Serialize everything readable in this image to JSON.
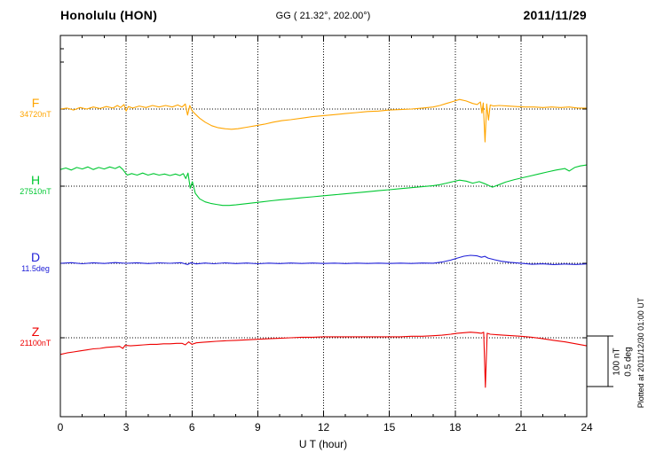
{
  "header": {
    "station": "Honolulu (HON)",
    "coordinates": "GG ( 21.32°, 202.00°)",
    "date": "2011/11/29"
  },
  "right_panel": {
    "scale_labels": [
      "100 nT",
      "0.5 deg"
    ],
    "plotted_at": "Plotted at 2011/12/30 01:00 UT"
  },
  "chart_data": {
    "type": "line",
    "title": "Honolulu (HON) magnetogram",
    "date": "2011/11/29",
    "xlabel": "U T (hour)",
    "x_range": [
      0,
      24
    ],
    "x_ticks": [
      0,
      3,
      6,
      9,
      12,
      15,
      18,
      21,
      24
    ],
    "grid": "dotted vertical gridlines every 3 hours; dotted horizontal baseline for each trace",
    "legend_position": "left margin, one label per trace",
    "scale": {
      "nT_per_div": 100,
      "deg_per_div": 0.5
    },
    "offsets_note": "points are [UT hour, offset from baseline] in the series unit",
    "series": [
      {
        "name": "F",
        "unit": "nT",
        "baseline_label": "34720nT",
        "baseline_value": 34720,
        "color": "#FFA500",
        "points": [
          [
            0,
            0
          ],
          [
            0.3,
            2
          ],
          [
            0.6,
            -2
          ],
          [
            0.9,
            3
          ],
          [
            1.2,
            0
          ],
          [
            1.5,
            4
          ],
          [
            1.8,
            1
          ],
          [
            2.1,
            5
          ],
          [
            2.4,
            2
          ],
          [
            2.6,
            7
          ],
          [
            2.75,
            3
          ],
          [
            2.9,
            9
          ],
          [
            3,
            -4
          ],
          [
            3.1,
            5
          ],
          [
            3.3,
            2
          ],
          [
            3.6,
            6
          ],
          [
            3.9,
            3
          ],
          [
            4.2,
            7
          ],
          [
            4.5,
            4
          ],
          [
            4.8,
            7
          ],
          [
            5.1,
            4
          ],
          [
            5.35,
            8
          ],
          [
            5.55,
            4
          ],
          [
            5.7,
            10
          ],
          [
            5.8,
            -12
          ],
          [
            5.9,
            7
          ],
          [
            6,
            -3
          ],
          [
            6.15,
            -10
          ],
          [
            6.35,
            -18
          ],
          [
            6.6,
            -26
          ],
          [
            6.9,
            -33
          ],
          [
            7.2,
            -37
          ],
          [
            7.5,
            -39
          ],
          [
            7.8,
            -40
          ],
          [
            8.1,
            -39
          ],
          [
            8.5,
            -36
          ],
          [
            8.9,
            -33
          ],
          [
            9.3,
            -30
          ],
          [
            9.7,
            -26
          ],
          [
            10.1,
            -23
          ],
          [
            10.5,
            -21
          ],
          [
            11,
            -18
          ],
          [
            11.5,
            -15
          ],
          [
            12,
            -13
          ],
          [
            12.5,
            -11
          ],
          [
            13,
            -9
          ],
          [
            13.5,
            -7
          ],
          [
            14,
            -5
          ],
          [
            14.5,
            -4
          ],
          [
            15,
            -2
          ],
          [
            15.5,
            -1
          ],
          [
            16,
            0
          ],
          [
            16.5,
            2
          ],
          [
            17,
            4
          ],
          [
            17.3,
            7
          ],
          [
            17.6,
            11
          ],
          [
            17.9,
            15
          ],
          [
            18.2,
            19
          ],
          [
            18.5,
            16
          ],
          [
            18.8,
            11
          ],
          [
            19,
            9
          ],
          [
            19.15,
            14
          ],
          [
            19.22,
            -8
          ],
          [
            19.28,
            12
          ],
          [
            19.36,
            -65
          ],
          [
            19.44,
            10
          ],
          [
            19.52,
            -22
          ],
          [
            19.6,
            8
          ],
          [
            19.75,
            6
          ],
          [
            20,
            7
          ],
          [
            20.4,
            6
          ],
          [
            20.8,
            5
          ],
          [
            21.2,
            4
          ],
          [
            21.6,
            4
          ],
          [
            22,
            3
          ],
          [
            22.4,
            4
          ],
          [
            22.8,
            3
          ],
          [
            23.2,
            4
          ],
          [
            23.6,
            2
          ],
          [
            24,
            2
          ]
        ]
      },
      {
        "name": "H",
        "unit": "nT",
        "baseline_label": "27510nT",
        "baseline_value": 27510,
        "color": "#00C832",
        "points": [
          [
            0,
            33
          ],
          [
            0.25,
            36
          ],
          [
            0.5,
            32
          ],
          [
            0.75,
            37
          ],
          [
            1,
            34
          ],
          [
            1.25,
            38
          ],
          [
            1.5,
            33
          ],
          [
            1.75,
            37
          ],
          [
            2,
            34
          ],
          [
            2.25,
            38
          ],
          [
            2.5,
            35
          ],
          [
            2.7,
            39
          ],
          [
            2.85,
            33
          ],
          [
            2.95,
            27
          ],
          [
            3.05,
            22
          ],
          [
            3.25,
            25
          ],
          [
            3.5,
            22
          ],
          [
            3.75,
            26
          ],
          [
            4,
            22
          ],
          [
            4.25,
            25
          ],
          [
            4.5,
            22
          ],
          [
            4.75,
            24
          ],
          [
            5,
            21
          ],
          [
            5.25,
            24
          ],
          [
            5.45,
            21
          ],
          [
            5.6,
            25
          ],
          [
            5.72,
            15
          ],
          [
            5.82,
            26
          ],
          [
            5.92,
            -4
          ],
          [
            6.02,
            9
          ],
          [
            6.15,
            -14
          ],
          [
            6.35,
            -25
          ],
          [
            6.6,
            -31
          ],
          [
            6.85,
            -34
          ],
          [
            7.1,
            -36
          ],
          [
            7.4,
            -38
          ],
          [
            7.7,
            -38
          ],
          [
            8,
            -37
          ],
          [
            8.4,
            -35
          ],
          [
            8.8,
            -33
          ],
          [
            9.2,
            -31
          ],
          [
            9.6,
            -29
          ],
          [
            10,
            -27
          ],
          [
            10.5,
            -25
          ],
          [
            11,
            -23
          ],
          [
            11.5,
            -21
          ],
          [
            12,
            -19
          ],
          [
            12.5,
            -17
          ],
          [
            13,
            -15
          ],
          [
            13.5,
            -13
          ],
          [
            14,
            -11
          ],
          [
            14.5,
            -9
          ],
          [
            15,
            -7
          ],
          [
            15.5,
            -5
          ],
          [
            16,
            -3
          ],
          [
            16.5,
            -1
          ],
          [
            17,
            1
          ],
          [
            17.3,
            3
          ],
          [
            17.6,
            6
          ],
          [
            17.9,
            9
          ],
          [
            18.2,
            12
          ],
          [
            18.5,
            10
          ],
          [
            18.8,
            6
          ],
          [
            19.1,
            9
          ],
          [
            19.4,
            4
          ],
          [
            19.7,
            -2
          ],
          [
            20,
            3
          ],
          [
            20.3,
            8
          ],
          [
            20.7,
            13
          ],
          [
            21,
            16
          ],
          [
            21.4,
            20
          ],
          [
            21.8,
            24
          ],
          [
            22.2,
            28
          ],
          [
            22.6,
            32
          ],
          [
            23,
            35
          ],
          [
            23.2,
            30
          ],
          [
            23.45,
            37
          ],
          [
            23.7,
            40
          ],
          [
            24,
            42
          ]
        ]
      },
      {
        "name": "D",
        "unit": "deg",
        "baseline_label": "11.5deg",
        "baseline_value": 11.5,
        "color": "#2020D8",
        "points": [
          [
            0,
            0
          ],
          [
            0.5,
            0.006
          ],
          [
            1,
            -0.004
          ],
          [
            1.5,
            0.005
          ],
          [
            2,
            -0.002
          ],
          [
            2.5,
            0.007
          ],
          [
            3,
            0
          ],
          [
            3.5,
            0.005
          ],
          [
            4,
            -0.003
          ],
          [
            4.5,
            0.004
          ],
          [
            5,
            0
          ],
          [
            5.5,
            0.006
          ],
          [
            5.8,
            -0.012
          ],
          [
            5.95,
            0.005
          ],
          [
            6.2,
            -0.006
          ],
          [
            6.6,
            0.003
          ],
          [
            7,
            -0.004
          ],
          [
            7.5,
            0.004
          ],
          [
            8,
            -0.003
          ],
          [
            8.5,
            0.003
          ],
          [
            9,
            -0.004
          ],
          [
            9.5,
            0.002
          ],
          [
            10,
            -0.003
          ],
          [
            10.5,
            0.003
          ],
          [
            11,
            -0.002
          ],
          [
            11.5,
            0.003
          ],
          [
            12,
            -0.002
          ],
          [
            12.5,
            0.002
          ],
          [
            13,
            -0.003
          ],
          [
            13.5,
            0.002
          ],
          [
            14,
            -0.002
          ],
          [
            14.5,
            0.002
          ],
          [
            15,
            -0.002
          ],
          [
            15.5,
            0.002
          ],
          [
            16,
            -0.002
          ],
          [
            16.5,
            0.003
          ],
          [
            17,
            0.001
          ],
          [
            17.4,
            0.012
          ],
          [
            17.8,
            0.032
          ],
          [
            18.1,
            0.052
          ],
          [
            18.4,
            0.07
          ],
          [
            18.7,
            0.079
          ],
          [
            19,
            0.074
          ],
          [
            19.2,
            0.06
          ],
          [
            19.35,
            0.069
          ],
          [
            19.5,
            0.052
          ],
          [
            19.8,
            0.035
          ],
          [
            20.1,
            0.02
          ],
          [
            20.5,
            0.01
          ],
          [
            21,
            0.001
          ],
          [
            21.5,
            -0.01
          ],
          [
            22,
            -0.005
          ],
          [
            22.5,
            -0.012
          ],
          [
            23,
            -0.007
          ],
          [
            23.5,
            -0.011
          ],
          [
            24,
            -0.006
          ]
        ]
      },
      {
        "name": "Z",
        "unit": "nT",
        "baseline_label": "21100nT",
        "baseline_value": 21100,
        "color": "#EE0000",
        "points": [
          [
            0,
            -33
          ],
          [
            0.3,
            -30
          ],
          [
            0.6,
            -28
          ],
          [
            0.9,
            -26
          ],
          [
            1.2,
            -24
          ],
          [
            1.5,
            -22
          ],
          [
            1.8,
            -21
          ],
          [
            2.1,
            -19
          ],
          [
            2.4,
            -18
          ],
          [
            2.7,
            -17
          ],
          [
            2.85,
            -21
          ],
          [
            2.95,
            -15
          ],
          [
            3.2,
            -16
          ],
          [
            3.5,
            -15
          ],
          [
            3.8,
            -14
          ],
          [
            4.1,
            -13
          ],
          [
            4.4,
            -13
          ],
          [
            4.7,
            -12
          ],
          [
            5,
            -12
          ],
          [
            5.3,
            -11
          ],
          [
            5.55,
            -11
          ],
          [
            5.7,
            -14
          ],
          [
            5.85,
            -8
          ],
          [
            6,
            -13
          ],
          [
            6.2,
            -10
          ],
          [
            6.5,
            -9
          ],
          [
            6.8,
            -8
          ],
          [
            7.1,
            -7
          ],
          [
            7.5,
            -6
          ],
          [
            8,
            -5
          ],
          [
            8.5,
            -4
          ],
          [
            9,
            -3
          ],
          [
            9.5,
            -2
          ],
          [
            10,
            -1
          ],
          [
            10.5,
            0
          ],
          [
            11,
            1
          ],
          [
            11.5,
            1
          ],
          [
            12,
            2
          ],
          [
            12.5,
            2
          ],
          [
            13,
            2
          ],
          [
            13.5,
            2
          ],
          [
            14,
            2
          ],
          [
            14.5,
            2
          ],
          [
            15,
            2
          ],
          [
            15.5,
            2
          ],
          [
            16,
            3
          ],
          [
            16.5,
            3
          ],
          [
            17,
            4
          ],
          [
            17.4,
            5
          ],
          [
            17.8,
            7
          ],
          [
            18.1,
            9
          ],
          [
            18.4,
            10
          ],
          [
            18.7,
            11
          ],
          [
            19,
            10
          ],
          [
            19.2,
            9
          ],
          [
            19.3,
            11
          ],
          [
            19.38,
            -98
          ],
          [
            19.46,
            9
          ],
          [
            19.6,
            7
          ],
          [
            19.9,
            6
          ],
          [
            20.2,
            5
          ],
          [
            20.6,
            4
          ],
          [
            21,
            3
          ],
          [
            21.5,
            1
          ],
          [
            22,
            -2
          ],
          [
            22.5,
            -5
          ],
          [
            23,
            -8
          ],
          [
            23.5,
            -12
          ],
          [
            24,
            -16
          ]
        ]
      }
    ]
  }
}
